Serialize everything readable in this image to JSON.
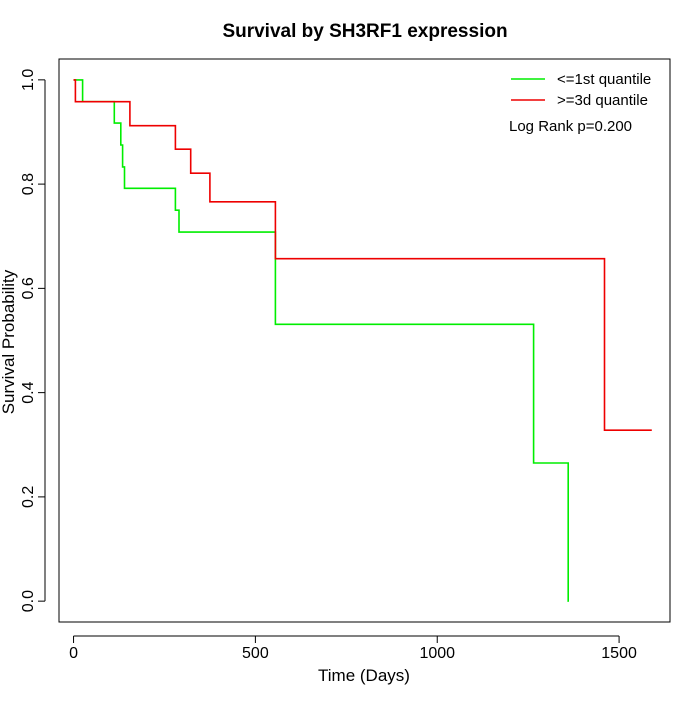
{
  "chart_data": {
    "type": "line",
    "subtype": "kaplan-meier-step",
    "title": "Survival by SH3RF1 expression",
    "xlabel": "Time (Days)",
    "ylabel": "Survival Probability",
    "xlim": [
      -40,
      1640
    ],
    "ylim": [
      -0.04,
      1.04
    ],
    "x_ticks": [
      0,
      500,
      1000,
      1500
    ],
    "y_ticks": [
      0.0,
      0.2,
      0.4,
      0.6,
      0.8,
      1.0
    ],
    "x_tick_labels": [
      "0",
      "500",
      "1000",
      "1500"
    ],
    "y_tick_labels": [
      "0.0",
      "0.2",
      "0.4",
      "0.6",
      "0.8",
      "1.0"
    ],
    "grid": false,
    "legend_position": "top-right",
    "series": [
      {
        "name": "<=1st quantile",
        "color": "#00ee00",
        "x": [
          0,
          25,
          112,
          130,
          135,
          140,
          142,
          280,
          290,
          300,
          555,
          558,
          1265,
          1360,
          1362
        ],
        "y": [
          1.0,
          0.958,
          0.917,
          0.875,
          0.833,
          0.792,
          0.792,
          0.75,
          0.708,
          0.708,
          0.531,
          0.531,
          0.265,
          0.0,
          0.0
        ]
      },
      {
        "name": ">=3d quantile",
        "color": "#ee0000",
        "x": [
          0,
          5,
          155,
          280,
          322,
          375,
          555,
          1460,
          1590
        ],
        "y": [
          1.0,
          0.958,
          0.912,
          0.867,
          0.821,
          0.766,
          0.657,
          0.328,
          0.328
        ]
      }
    ],
    "annotations": [
      "Log Rank p=0.200"
    ]
  }
}
